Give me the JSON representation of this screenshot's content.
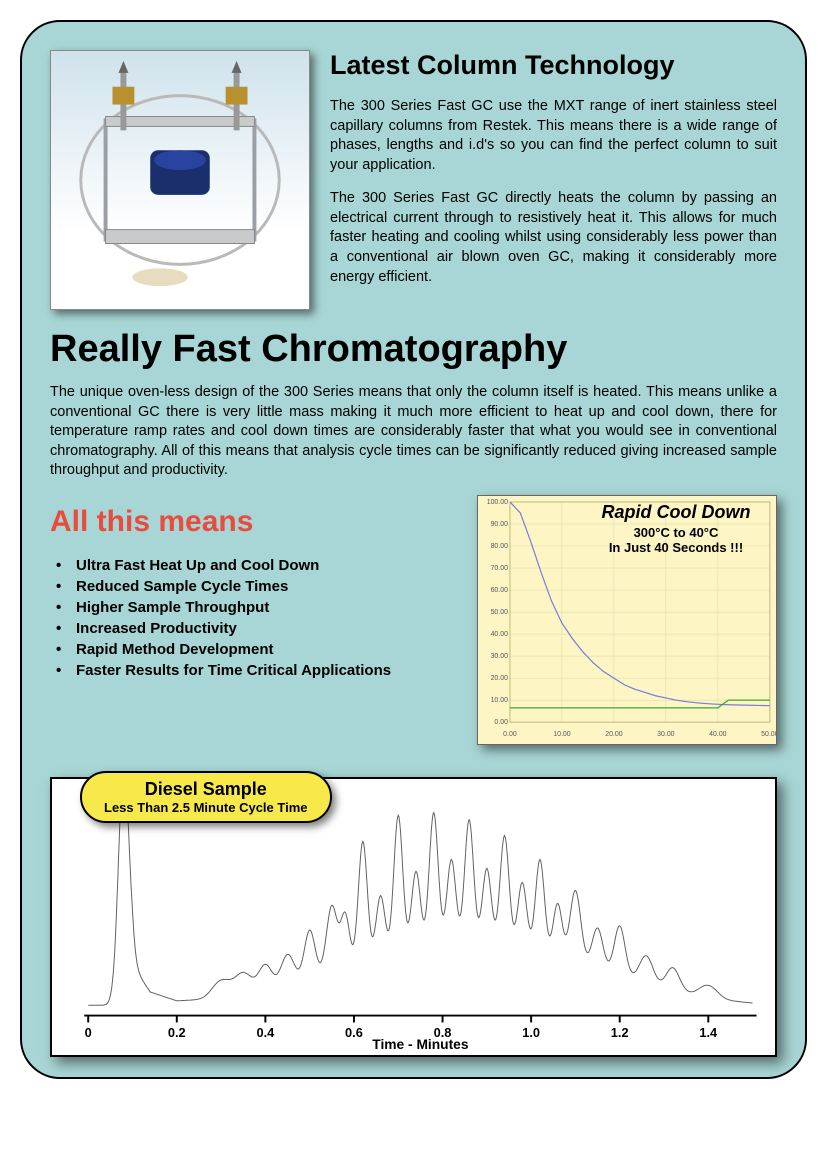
{
  "colors": {
    "page_bg": "#a8d5d5",
    "border": "#000000",
    "red_heading": "#e84c3d",
    "cool_chart_bg": "#fdf6c4",
    "diesel_label_bg": "#f7e94a",
    "cool_curve_color": "#7a7ad8",
    "cool_baseline_color": "#3aa63a",
    "chromatogram_color": "#606060"
  },
  "top": {
    "heading": "Latest Column Technology",
    "para1": "The 300 Series Fast GC use the MXT range of inert stainless steel capillary columns from Restek. This means there is a wide range of phases, lengths and i.d's so you can find the perfect column to suit your application.",
    "para2": "The 300 Series Fast GC directly heats the column by passing an electrical current through to resistively heat it. This allows for much faster heating and cooling whilst using considerably less power than a conventional air blown oven GC, making it considerably more energy efficient."
  },
  "main_heading": "Really Fast Chromatography",
  "main_para": "The unique oven-less design of the 300 Series means that only the column itself is heated. This means unlike a conventional GC there is very little mass making it much more efficient to heat up and cool down, there for temperature ramp rates and cool down times are considerably faster that what you would see in conventional chromatography.  All of this means that analysis cycle times can be significantly reduced giving increased sample throughput and productivity.",
  "red_heading": "All this means",
  "bullets": [
    "Ultra Fast Heat Up and Cool Down",
    "Reduced Sample Cycle Times",
    "Higher Sample Throughput",
    "Increased Productivity",
    "Rapid Method Development",
    "Faster Results for Time Critical Applications"
  ],
  "cool_chart": {
    "type": "line",
    "title": "Rapid Cool Down",
    "subtitle1": "300°C to 40°C",
    "subtitle2": "In Just 40 Seconds !!!",
    "bg": "#fdf6c4",
    "ylim": [
      0,
      100
    ],
    "yticks": [
      0,
      10,
      20,
      30,
      40,
      50,
      60,
      70,
      80,
      90,
      100
    ],
    "ytick_labels": [
      "0.00",
      "10.00",
      "20.00",
      "30.00",
      "40.00",
      "50.00",
      "60.00",
      "70.00",
      "80.00",
      "90.00",
      "100.00"
    ],
    "xlim": [
      0,
      50
    ],
    "xticks": [
      0,
      10,
      20,
      30,
      40,
      50
    ],
    "xtick_labels": [
      "0.00",
      "10.00",
      "20.00",
      "30.00",
      "40.00",
      "50.00"
    ],
    "curve_points": [
      [
        0,
        100
      ],
      [
        2,
        95
      ],
      [
        4,
        82
      ],
      [
        6,
        68
      ],
      [
        8,
        55
      ],
      [
        10,
        45
      ],
      [
        12,
        38
      ],
      [
        14,
        32
      ],
      [
        16,
        27
      ],
      [
        18,
        23
      ],
      [
        20,
        20
      ],
      [
        22,
        17
      ],
      [
        24,
        15
      ],
      [
        26,
        13.5
      ],
      [
        28,
        12
      ],
      [
        30,
        11
      ],
      [
        32,
        10
      ],
      [
        34,
        9.3
      ],
      [
        36,
        8.8
      ],
      [
        38,
        8.4
      ],
      [
        40,
        8.1
      ],
      [
        42,
        7.9
      ],
      [
        44,
        7.8
      ],
      [
        46,
        7.7
      ],
      [
        48,
        7.6
      ],
      [
        50,
        7.5
      ]
    ],
    "baseline_points": [
      [
        0,
        6.5
      ],
      [
        40,
        6.5
      ],
      [
        42,
        10
      ],
      [
        50,
        10
      ]
    ],
    "curve_color": "#7a7ad8",
    "baseline_color": "#3aa63a",
    "line_width": 1.2
  },
  "diesel": {
    "label_line1": "Diesel Sample",
    "label_line2": "Less Than 2.5 Minute Cycle Time",
    "type": "chromatogram",
    "bg": "#ffffff",
    "xlim": [
      0,
      1.5
    ],
    "xticks": [
      0,
      0.2,
      0.4,
      0.6,
      0.8,
      1.0,
      1.2,
      1.4
    ],
    "xtick_labels": [
      "0",
      "0.2",
      "0.4",
      "0.6",
      "0.8",
      "1.0",
      "1.2",
      "1.4"
    ],
    "x_axis_title": "Time - Minutes",
    "y_baseline": 0,
    "y_max": 100,
    "line_color": "#606060",
    "line_width": 1,
    "peaks": [
      {
        "x": 0.08,
        "h": 100,
        "w": 0.012
      },
      {
        "x": 0.3,
        "h": 8,
        "w": 0.02
      },
      {
        "x": 0.35,
        "h": 10,
        "w": 0.02
      },
      {
        "x": 0.4,
        "h": 12,
        "w": 0.015
      },
      {
        "x": 0.45,
        "h": 14,
        "w": 0.015
      },
      {
        "x": 0.5,
        "h": 22,
        "w": 0.012
      },
      {
        "x": 0.55,
        "h": 30,
        "w": 0.012
      },
      {
        "x": 0.58,
        "h": 24,
        "w": 0.01
      },
      {
        "x": 0.62,
        "h": 55,
        "w": 0.01
      },
      {
        "x": 0.66,
        "h": 28,
        "w": 0.01
      },
      {
        "x": 0.7,
        "h": 62,
        "w": 0.01
      },
      {
        "x": 0.74,
        "h": 35,
        "w": 0.01
      },
      {
        "x": 0.78,
        "h": 60,
        "w": 0.01
      },
      {
        "x": 0.82,
        "h": 38,
        "w": 0.01
      },
      {
        "x": 0.86,
        "h": 56,
        "w": 0.01
      },
      {
        "x": 0.9,
        "h": 34,
        "w": 0.01
      },
      {
        "x": 0.94,
        "h": 50,
        "w": 0.01
      },
      {
        "x": 0.98,
        "h": 30,
        "w": 0.01
      },
      {
        "x": 1.02,
        "h": 42,
        "w": 0.01
      },
      {
        "x": 1.06,
        "h": 24,
        "w": 0.01
      },
      {
        "x": 1.1,
        "h": 32,
        "w": 0.012
      },
      {
        "x": 1.15,
        "h": 18,
        "w": 0.012
      },
      {
        "x": 1.2,
        "h": 22,
        "w": 0.012
      },
      {
        "x": 1.26,
        "h": 12,
        "w": 0.015
      },
      {
        "x": 1.32,
        "h": 10,
        "w": 0.015
      },
      {
        "x": 1.4,
        "h": 6,
        "w": 0.02
      }
    ],
    "baseline_envelope": [
      [
        0,
        2
      ],
      [
        0.06,
        2
      ],
      [
        0.1,
        20
      ],
      [
        0.14,
        8
      ],
      [
        0.2,
        4
      ],
      [
        0.3,
        5
      ],
      [
        0.4,
        8
      ],
      [
        0.5,
        14
      ],
      [
        0.6,
        20
      ],
      [
        0.7,
        26
      ],
      [
        0.8,
        30
      ],
      [
        0.9,
        30
      ],
      [
        1.0,
        27
      ],
      [
        1.1,
        22
      ],
      [
        1.2,
        16
      ],
      [
        1.3,
        10
      ],
      [
        1.4,
        5
      ],
      [
        1.5,
        3
      ]
    ]
  }
}
